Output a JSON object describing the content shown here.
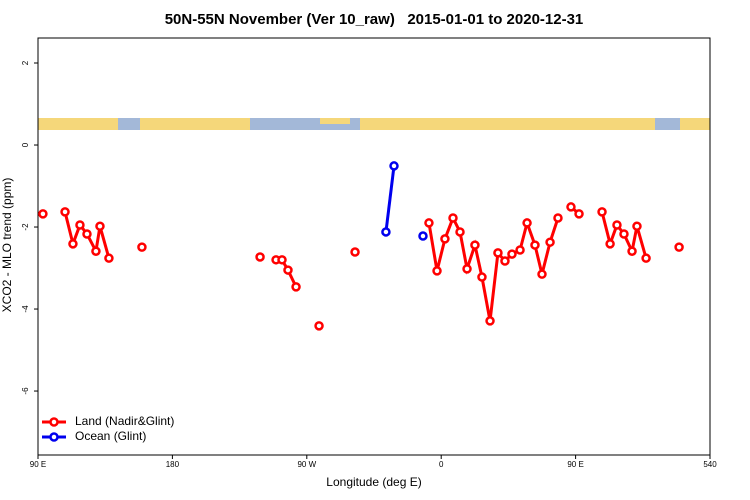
{
  "chart_data": {
    "type": "line",
    "title": "50N-55N November (Ver 10_raw)   2015-01-01 to 2020-12-31",
    "x_label": "Longitude (deg E)",
    "y_label": "XCO2 - MLO trend (ppm)",
    "xlim": [
      90,
      540
    ],
    "xticks": [
      {
        "value": 90,
        "label": "90 E"
      },
      180,
      {
        "value": 270,
        "label": "90 W"
      },
      {
        "value": 360,
        "label": "0"
      },
      {
        "value": 450,
        "label": "90 E"
      },
      540
    ],
    "ylim": [
      -7.56,
      2.61
    ],
    "yticks": [
      2,
      0,
      -2,
      -4,
      -6
    ],
    "legend": "bottom-left",
    "series": [
      {
        "name": "Land (Nadir&Glint)",
        "color": "#ff0000",
        "x": [
          93.3,
          null,
          108.1,
          113.4,
          118.1,
          122.8,
          128.8,
          131.5,
          137.5,
          null,
          159.6,
          null,
          238.7,
          null,
          249.4,
          253.4,
          257.4,
          262.8,
          null,
          278.2,
          null,
          302.3,
          null,
          351.8,
          357.2,
          362.5,
          367.9,
          372.6,
          377.3,
          382.6,
          387.3,
          392.7,
          398.0,
          402.7,
          407.4,
          412.8,
          417.5,
          422.8,
          427.5,
          432.9,
          438.2,
          null,
          446.9,
          452.3,
          null,
          467.7,
          473.1,
          477.7,
          482.4,
          487.8,
          491.1,
          497.2,
          null,
          519.3
        ],
        "values": [
          -1.68,
          null,
          -1.63,
          -2.41,
          -1.95,
          -2.17,
          -2.59,
          -1.98,
          -2.76,
          null,
          -2.49,
          null,
          -2.73,
          null,
          -2.8,
          -2.8,
          -3.05,
          -3.46,
          null,
          -4.41,
          null,
          -2.61,
          null,
          -1.9,
          -3.07,
          -2.29,
          -1.78,
          -2.12,
          -3.02,
          -2.44,
          -3.22,
          -4.29,
          -2.63,
          -2.83,
          -2.66,
          -2.56,
          -1.9,
          -2.44,
          -3.15,
          -2.37,
          -1.78,
          null,
          -1.51,
          -1.68,
          null,
          -1.63,
          -2.41,
          -1.95,
          -2.17,
          -2.59,
          -1.98,
          -2.76,
          null,
          -2.49
        ]
      },
      {
        "name": "Ocean (Glint)",
        "color": "#0000ee",
        "x": [
          323.0,
          328.4,
          null,
          347.8
        ],
        "values": [
          -2.12,
          -0.51,
          null,
          -2.22
        ]
      }
    ]
  }
}
